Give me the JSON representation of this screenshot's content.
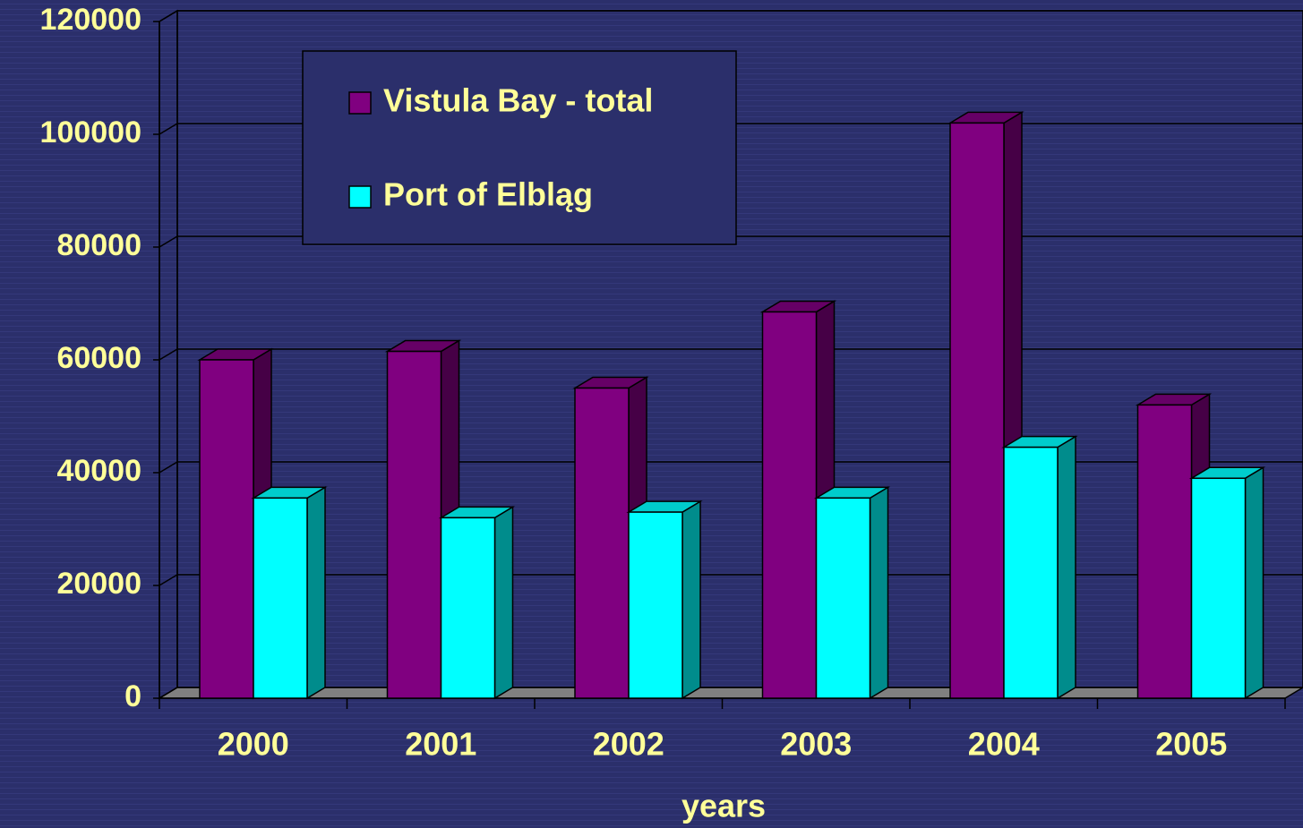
{
  "chart_data": {
    "type": "bar3d",
    "x_label": "years",
    "categories": [
      "2000",
      "2001",
      "2002",
      "2003",
      "2004",
      "2005"
    ],
    "series": [
      {
        "name": "Vistula Bay - total",
        "color": "#800080",
        "values": [
          60000,
          61500,
          55000,
          68500,
          102000,
          52000
        ]
      },
      {
        "name": "Port of Elbląg",
        "color": "#00ffff",
        "values": [
          35500,
          32000,
          33000,
          35500,
          44500,
          39000
        ]
      }
    ],
    "ylim": [
      0,
      120000
    ],
    "yticks": [
      0,
      20000,
      40000,
      60000,
      80000,
      100000,
      120000
    ],
    "grid": true
  }
}
